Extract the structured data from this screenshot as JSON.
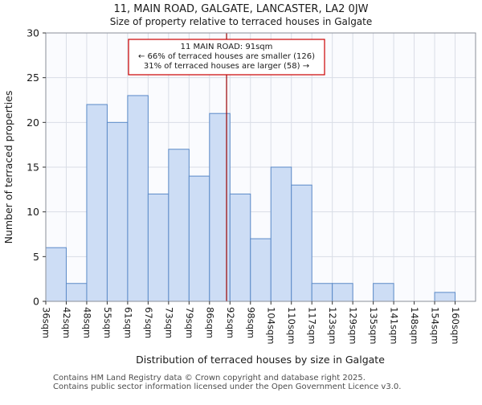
{
  "chart_data": {
    "type": "bar",
    "title": "11, MAIN ROAD, GALGATE, LANCASTER, LA2 0JW",
    "subtitle": "Size of property relative to terraced houses in Galgate",
    "xlabel": "Distribution of terraced houses by size in Galgate",
    "ylabel": "Number of terraced properties",
    "categories": [
      "36sqm",
      "42sqm",
      "48sqm",
      "55sqm",
      "61sqm",
      "67sqm",
      "73sqm",
      "79sqm",
      "86sqm",
      "92sqm",
      "98sqm",
      "104sqm",
      "110sqm",
      "117sqm",
      "123sqm",
      "129sqm",
      "135sqm",
      "141sqm",
      "148sqm",
      "154sqm",
      "160sqm"
    ],
    "values": [
      6,
      2,
      22,
      20,
      23,
      12,
      17,
      14,
      21,
      12,
      7,
      15,
      13,
      2,
      2,
      0,
      2,
      0,
      0,
      1,
      0
    ],
    "ylim": [
      0,
      30
    ],
    "yticks": [
      0,
      5,
      10,
      15,
      20,
      25,
      30
    ],
    "grid": true,
    "legend_position": "none",
    "bar_fill": "#cdddf5",
    "bar_stroke": "#5b8ac8",
    "grid_color": "#d9dde6",
    "axis_color": "#8a8f98",
    "tick_color": "#333333",
    "plot_bg": "#fafbfe",
    "marker": {
      "value": 91,
      "unit": "sqm",
      "line_color": "#990000",
      "box_color": "#cc0000",
      "label": "11 MAIN ROAD: 91sqm",
      "smaller_text": "← 66% of terraced houses are smaller (126)",
      "larger_text": "31% of terraced houses are larger (58) →"
    }
  },
  "footer": {
    "line1": "Contains HM Land Registry data © Crown copyright and database right 2025.",
    "line2": "Contains public sector information licensed under the Open Government Licence v3.0."
  }
}
